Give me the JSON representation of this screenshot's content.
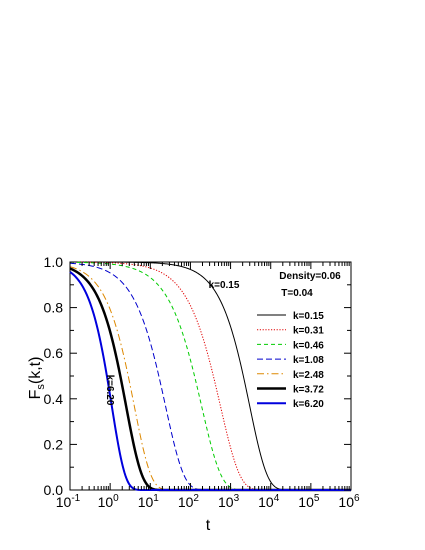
{
  "chart_data": {
    "type": "line",
    "xlabel": "t",
    "ylabel_main": "F",
    "ylabel_sub": "s",
    "ylabel_tail": "(k,t)",
    "xscale": "log",
    "xlim": [
      0.1,
      1000000
    ],
    "ylim": [
      0.0,
      1.0
    ],
    "x_ticks": [
      {
        "value": 0.1,
        "base": "10",
        "exp": "-1"
      },
      {
        "value": 1,
        "base": "10",
        "exp": "0"
      },
      {
        "value": 10,
        "base": "10",
        "exp": "1"
      },
      {
        "value": 100,
        "base": "10",
        "exp": "2"
      },
      {
        "value": 1000,
        "base": "10",
        "exp": "3"
      },
      {
        "value": 10000,
        "base": "10",
        "exp": "4"
      },
      {
        "value": 100000,
        "base": "10",
        "exp": "5"
      },
      {
        "value": 1000000,
        "base": "10",
        "exp": "6"
      }
    ],
    "y_ticks": [
      {
        "value": 0.0,
        "label": "0.0"
      },
      {
        "value": 0.2,
        "label": "0.2"
      },
      {
        "value": 0.4,
        "label": "0.4"
      },
      {
        "value": 0.6,
        "label": "0.6"
      },
      {
        "value": 0.8,
        "label": "0.8"
      },
      {
        "value": 1.0,
        "label": "1.0"
      }
    ],
    "annotations": {
      "density": "Density=0.06",
      "temperature": "T=0.04",
      "k_top": "k=0.15",
      "k_side": "k=6.20"
    },
    "legend_position": "right",
    "series": [
      {
        "name": "k=0.15",
        "color": "#000000",
        "dash": "solid",
        "width": 1,
        "tau": 3000,
        "beta": 1.0
      },
      {
        "name": "k=0.31",
        "color": "#e00000",
        "dash": "dotted",
        "width": 1,
        "tau": 560,
        "beta": 0.9
      },
      {
        "name": "k=0.46",
        "color": "#00cc00",
        "dash": "dashed",
        "width": 1,
        "tau": 190,
        "beta": 0.9
      },
      {
        "name": "k=1.08",
        "color": "#0000cc",
        "dash": "longdash",
        "width": 1,
        "tau": 24,
        "beta": 0.95
      },
      {
        "name": "k=2.48",
        "color": "#dd8800",
        "dash": "dashdot",
        "width": 1,
        "tau": 4.0,
        "beta": 1.05
      },
      {
        "name": "k=3.72",
        "color": "#000000",
        "dash": "solid",
        "width": 2.5,
        "tau": 2.5,
        "beta": 1.1
      },
      {
        "name": "k=6.20",
        "color": "#0000dd",
        "dash": "solid",
        "width": 2,
        "tau": 1.1,
        "beta": 1.3
      }
    ]
  }
}
